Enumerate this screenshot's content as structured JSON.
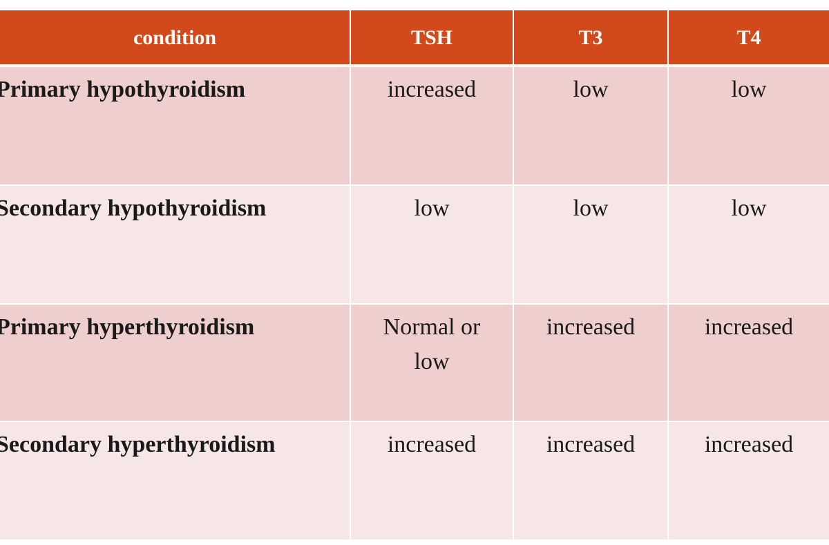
{
  "table": {
    "header": [
      "condition",
      "TSH",
      "T3",
      "T4"
    ],
    "rows": [
      [
        "Primary hypothyroidism",
        "increased",
        "low",
        "low"
      ],
      [
        "Secondary hypothyroidism",
        "low",
        "low",
        "low"
      ],
      [
        "Primary hyperthyroidism",
        "Normal or low",
        "increased",
        "increased"
      ],
      [
        "Secondary hyperthyroidism",
        "increased",
        "increased",
        "increased"
      ]
    ]
  }
}
